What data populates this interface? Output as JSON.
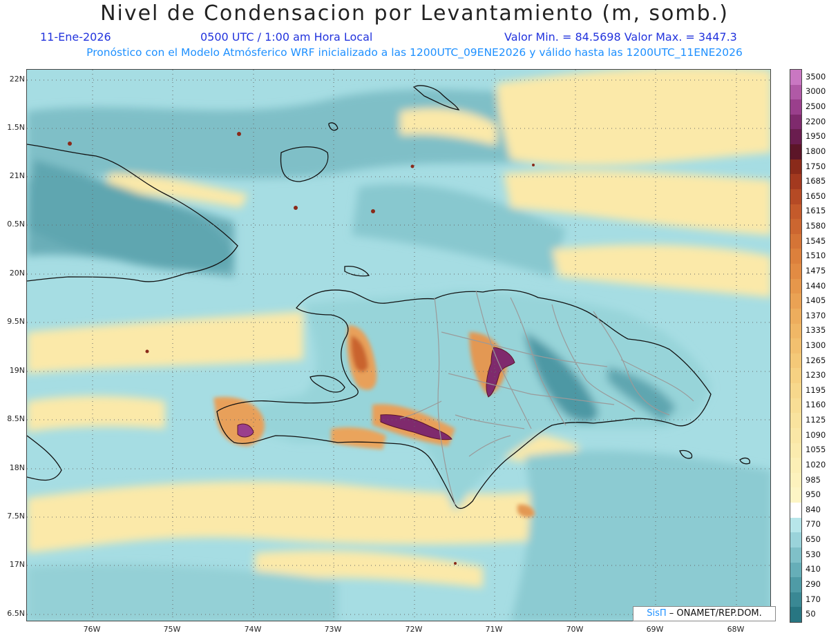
{
  "title": "Nivel de Condensacion por Levantamiento (m, somb.)",
  "date_label": "11-Ene-2026",
  "time_label": "0500 UTC / 1:00 am Hora Local",
  "minmax_label": "Valor Min. = 84.5698  Valor Max. = 3447.3",
  "forecast_label": "Pronóstico con el Modelo Atmósferico WRF inicializado a las 1200UTC_09ENE2026 y válido hasta las  1200UTC_11ENE2026",
  "credit": {
    "brand": "SisΠ",
    "text": " – ONAMET/REP.DOM."
  },
  "y_axis": [
    "22N",
    "1.5N",
    "21N",
    "0.5N",
    "20N",
    "9.5N",
    "19N",
    "8.5N",
    "18N",
    "7.5N",
    "17N",
    "6.5N"
  ],
  "x_axis": [
    "76W",
    "75W",
    "74W",
    "73W",
    "72W",
    "71W",
    "70W",
    "69W",
    "68W"
  ],
  "legend": {
    "labels": [
      "3500",
      "3000",
      "2500",
      "2200",
      "1950",
      "1800",
      "1750",
      "1685",
      "1650",
      "1615",
      "1580",
      "1545",
      "1510",
      "1475",
      "1440",
      "1405",
      "1370",
      "1335",
      "1300",
      "1265",
      "1230",
      "1195",
      "1160",
      "1125",
      "1090",
      "1055",
      "1020",
      "985",
      "950",
      "840",
      "770",
      "650",
      "530",
      "410",
      "290",
      "170",
      "50"
    ],
    "colors": [
      "#c977c2",
      "#b059a6",
      "#9a3f8c",
      "#7f2a6d",
      "#6a1d4f",
      "#5c1528",
      "#8a2a1a",
      "#a3391f",
      "#b54a25",
      "#c45a2b",
      "#cc6630",
      "#d57436",
      "#dc803c",
      "#e28b43",
      "#e6974b",
      "#eaa254",
      "#edad5d",
      "#f0b766",
      "#f2c06f",
      "#f4c978",
      "#f6d182",
      "#f7d88c",
      "#f8de95",
      "#f9e39e",
      "#faE7a6",
      "#fbebae",
      "#fcefb6",
      "#fdf2bd",
      "#fdf5c5",
      "#ffffff",
      "#b7e6ea",
      "#9ad3da",
      "#7fc0c8",
      "#66aeb8",
      "#4f9ba6",
      "#3a8894",
      "#287682"
    ]
  }
}
